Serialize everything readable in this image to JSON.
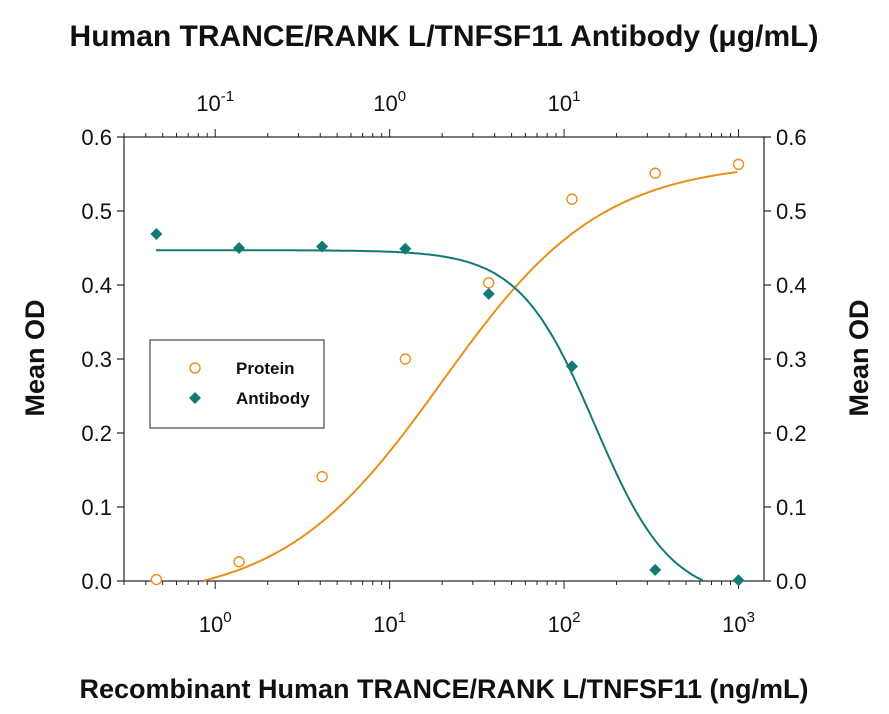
{
  "chart_data": {
    "type": "scatter",
    "title": "Human TRANCE/RANK L/TNFSF11 Antibody (μg/mL)",
    "xlabel": "Recombinant Human TRANCE/RANK L/TNFSF11 (ng/mL)",
    "ylabel": "Mean OD",
    "ylabel_right": "Mean OD",
    "x_scale": "log",
    "xlim": [
      0.3,
      1400
    ],
    "x_ticks": [
      {
        "value": 1,
        "base": "10",
        "exp": "0"
      },
      {
        "value": 10,
        "base": "10",
        "exp": "1"
      },
      {
        "value": 100,
        "base": "10",
        "exp": "2"
      },
      {
        "value": 1000,
        "base": "10",
        "exp": "3"
      }
    ],
    "x2_scale": "log",
    "x2lim": [
      0.03,
      140
    ],
    "x2_ticks": [
      {
        "value": 0.1,
        "base": "10",
        "exp": "-1"
      },
      {
        "value": 1,
        "base": "10",
        "exp": "0"
      },
      {
        "value": 10,
        "base": "10",
        "exp": "1"
      }
    ],
    "ylim": [
      0,
      0.6
    ],
    "y_ticks": [
      "0.0",
      "0.1",
      "0.2",
      "0.3",
      "0.4",
      "0.5",
      "0.6"
    ],
    "grid": false,
    "legend_position": "left-middle",
    "series": [
      {
        "name": "Protein",
        "axis": "bottom",
        "marker": "open-circle",
        "color": "#e8901a",
        "x": [
          0.46,
          1.37,
          4.1,
          12.3,
          37,
          111,
          333,
          1000
        ],
        "y": [
          0.002,
          0.026,
          0.141,
          0.3,
          0.403,
          0.516,
          0.551,
          0.563
        ]
      },
      {
        "name": "Antibody",
        "axis": "top",
        "marker": "filled-diamond",
        "color": "#137a73",
        "x": [
          0.046,
          0.137,
          0.41,
          1.23,
          3.7,
          11.1,
          33.3,
          100
        ],
        "y": [
          0.469,
          0.45,
          0.452,
          0.449,
          0.388,
          0.29,
          0.015,
          0.001
        ]
      }
    ]
  }
}
